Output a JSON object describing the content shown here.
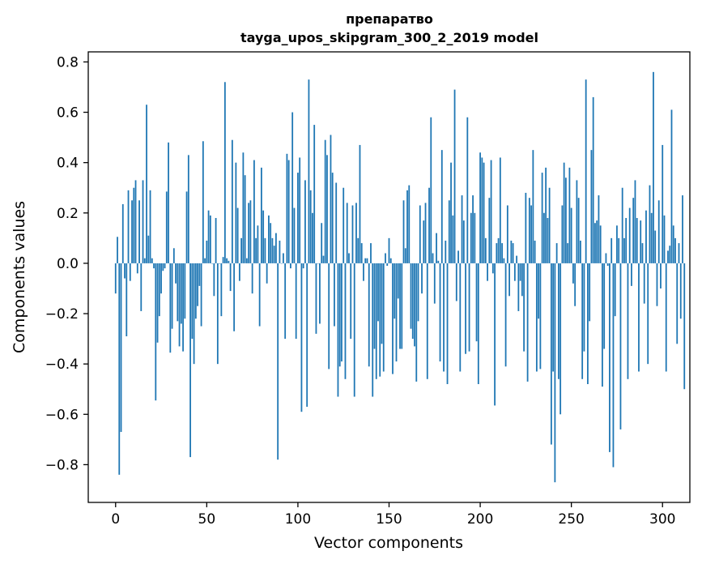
{
  "chart_data": {
    "type": "bar",
    "title": "препаратво",
    "subtitle": "tayga_upos_skipgram_300_2_2019 model",
    "xlabel": "Vector components",
    "ylabel": "Components values",
    "xlim": [
      -15,
      315
    ],
    "ylim": [
      -0.95,
      0.84
    ],
    "xticks": [
      0,
      50,
      100,
      150,
      200,
      250,
      300
    ],
    "yticks": [
      -0.8,
      -0.6,
      -0.4,
      -0.2,
      0.0,
      0.2,
      0.4,
      0.6,
      0.8
    ],
    "ytick_labels": [
      "−0.8",
      "−0.6",
      "−0.4",
      "−0.2",
      "0.0",
      "0.2",
      "0.4",
      "0.6",
      "0.8"
    ],
    "grid": false,
    "bar_color": "#1f77b4",
    "series": [
      {
        "name": "components",
        "values": [
          -0.12,
          0.105,
          -0.84,
          -0.67,
          0.235,
          -0.06,
          -0.29,
          0.29,
          -0.07,
          0.25,
          0.3,
          0.33,
          -0.04,
          0.25,
          -0.19,
          0.33,
          0.02,
          0.63,
          0.11,
          0.29,
          0.02,
          -0.02,
          -0.545,
          -0.315,
          -0.21,
          -0.12,
          -0.03,
          -0.02,
          0.285,
          0.48,
          -0.355,
          -0.26,
          0.06,
          -0.08,
          -0.23,
          -0.33,
          -0.24,
          -0.35,
          -0.22,
          0.285,
          0.43,
          -0.77,
          -0.3,
          -0.4,
          -0.22,
          -0.17,
          -0.09,
          -0.25,
          0.485,
          0.02,
          0.09,
          0.21,
          0.19,
          0.0,
          -0.13,
          0.18,
          -0.4,
          0.0,
          -0.21,
          0.025,
          0.72,
          0.02,
          0.01,
          -0.11,
          0.49,
          -0.27,
          0.4,
          0.22,
          -0.07,
          0.1,
          0.44,
          0.35,
          0.02,
          0.24,
          0.25,
          -0.12,
          0.41,
          0.1,
          0.15,
          -0.25,
          0.38,
          0.21,
          0.1,
          -0.08,
          0.19,
          0.16,
          0.1,
          0.07,
          0.12,
          -0.78,
          0.09,
          0.0,
          0.04,
          -0.3,
          0.435,
          0.41,
          -0.02,
          0.6,
          0.22,
          -0.3,
          0.36,
          0.42,
          -0.59,
          -0.02,
          0.33,
          -0.57,
          0.73,
          0.29,
          0.2,
          0.55,
          -0.28,
          0.0,
          -0.24,
          0.16,
          0.03,
          0.49,
          0.43,
          -0.42,
          0.51,
          0.36,
          -0.25,
          0.32,
          -0.53,
          -0.41,
          -0.39,
          0.3,
          -0.46,
          0.24,
          0.04,
          -0.3,
          0.23,
          -0.53,
          0.24,
          0.1,
          0.47,
          0.08,
          -0.07,
          0.02,
          0.02,
          -0.41,
          0.08,
          -0.53,
          -0.34,
          -0.46,
          -0.23,
          -0.45,
          -0.32,
          -0.43,
          0.04,
          -0.01,
          0.1,
          0.02,
          -0.44,
          -0.22,
          -0.39,
          -0.14,
          -0.34,
          -0.34,
          0.25,
          0.06,
          0.29,
          0.31,
          -0.26,
          -0.3,
          -0.33,
          -0.47,
          -0.23,
          0.23,
          -0.12,
          0.17,
          0.24,
          -0.46,
          0.3,
          0.58,
          0.04,
          -0.16,
          0.12,
          0.01,
          -0.39,
          0.45,
          -0.43,
          0.09,
          -0.48,
          0.25,
          0.4,
          0.19,
          0.69,
          -0.15,
          0.05,
          -0.43,
          0.27,
          0.17,
          -0.36,
          0.58,
          -0.35,
          0.2,
          0.27,
          0.2,
          -0.31,
          -0.48,
          0.44,
          0.42,
          0.4,
          0.1,
          -0.07,
          0.26,
          0.41,
          -0.04,
          -0.565,
          0.08,
          0.1,
          0.42,
          0.08,
          0.02,
          -0.41,
          0.23,
          -0.13,
          0.09,
          0.08,
          -0.07,
          0.03,
          -0.19,
          -0.07,
          -0.13,
          -0.35,
          0.28,
          -0.47,
          0.26,
          0.23,
          0.45,
          0.09,
          -0.43,
          -0.22,
          -0.42,
          0.36,
          0.2,
          0.38,
          0.18,
          0.3,
          -0.72,
          -0.43,
          -0.87,
          0.08,
          -0.46,
          -0.6,
          0.23,
          0.4,
          0.34,
          0.08,
          0.38,
          0.22,
          -0.08,
          -0.17,
          0.33,
          0.26,
          0.09,
          -0.46,
          -0.35,
          0.73,
          -0.48,
          -0.23,
          0.45,
          0.66,
          0.16,
          0.17,
          0.27,
          0.15,
          -0.49,
          -0.34,
          0.04,
          -0.01,
          -0.75,
          0.1,
          -0.81,
          -0.21,
          0.15,
          0.1,
          -0.66,
          0.3,
          0.1,
          0.18,
          -0.46,
          0.22,
          -0.09,
          0.26,
          0.33,
          0.18,
          -0.43,
          0.17,
          0.08,
          -0.16,
          0.21,
          -0.4,
          0.31,
          0.2,
          0.76,
          0.13,
          -0.17,
          0.25,
          -0.1,
          0.47,
          0.19,
          -0.43,
          0.05,
          0.07,
          0.61,
          0.15,
          0.1,
          -0.32,
          0.08,
          -0.22,
          0.27,
          -0.5
        ]
      }
    ]
  }
}
